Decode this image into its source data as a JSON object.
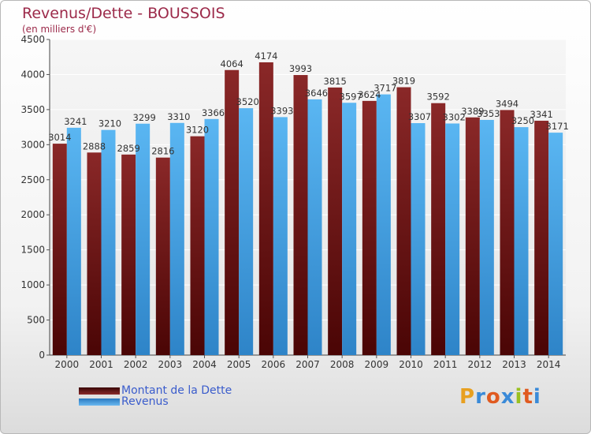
{
  "chart_data": {
    "type": "bar",
    "title": "Revenus/Dette - BOUSSOIS",
    "subtitle": "(en milliers d'€)",
    "categories": [
      "2000",
      "2001",
      "2002",
      "2003",
      "2004",
      "2005",
      "2006",
      "2007",
      "2008",
      "2009",
      "2010",
      "2011",
      "2012",
      "2013",
      "2014"
    ],
    "series": [
      {
        "name": "Montant de la Dette",
        "color": "#7a1c1c",
        "values": [
          3014,
          2888,
          2859,
          2816,
          3120,
          4064,
          4174,
          3993,
          3815,
          3624,
          3819,
          3592,
          3389,
          3494,
          3341
        ]
      },
      {
        "name": "Revenus",
        "color": "#49a8e8",
        "values": [
          3241,
          3210,
          3299,
          3310,
          3366,
          3520,
          3393,
          3646,
          3597,
          3717,
          3307,
          3302,
          3353,
          3250,
          3171
        ]
      }
    ],
    "y_ticks": [
      0,
      500,
      1000,
      1500,
      2000,
      2500,
      3000,
      3500,
      4000,
      4500
    ],
    "ylim": [
      0,
      4500
    ],
    "grid": true,
    "legend_position": "bottom-left"
  },
  "legend": {
    "debt_label": "Montant de la Dette",
    "revenue_label": "Revenus"
  },
  "logo": {
    "letters": [
      "P",
      "r",
      "o",
      "x",
      "i",
      "t",
      "i"
    ],
    "colors": [
      "#e8a020",
      "#3a8ad8",
      "#e05a20",
      "#3a8ad8",
      "#9ac020",
      "#e05a20",
      "#3a8ad8"
    ]
  }
}
